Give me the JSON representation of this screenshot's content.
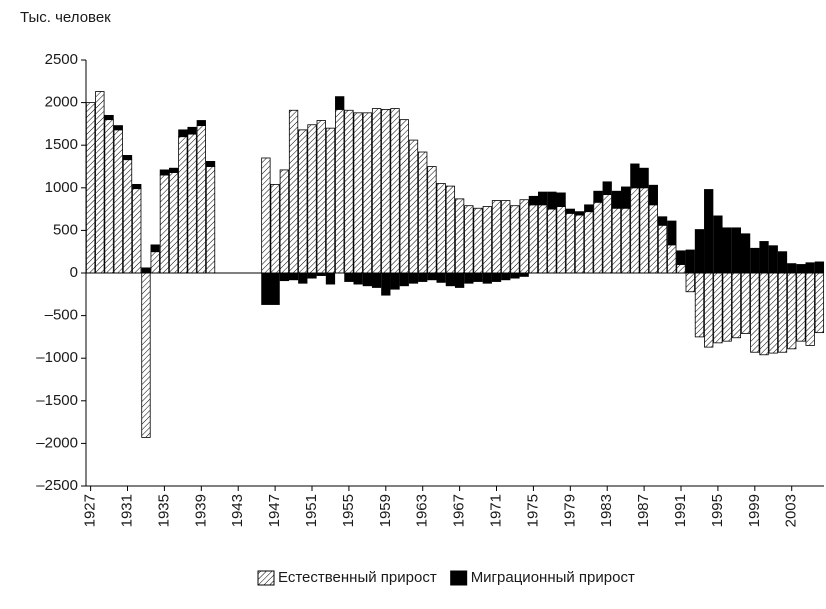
{
  "chart_data": {
    "type": "stacked-bar",
    "ylabel": "Тыс. человек",
    "x": [
      1927,
      1928,
      1929,
      1930,
      1931,
      1932,
      1933,
      1934,
      1935,
      1936,
      1937,
      1938,
      1939,
      1940,
      1941,
      1942,
      1943,
      1944,
      1945,
      1946,
      1947,
      1948,
      1949,
      1950,
      1951,
      1952,
      1953,
      1954,
      1955,
      1956,
      1957,
      1958,
      1959,
      1960,
      1961,
      1962,
      1963,
      1964,
      1965,
      1966,
      1967,
      1968,
      1969,
      1970,
      1971,
      1972,
      1973,
      1974,
      1975,
      1976,
      1977,
      1978,
      1979,
      1980,
      1981,
      1982,
      1983,
      1984,
      1985,
      1986,
      1987,
      1988,
      1989,
      1990,
      1991,
      1992,
      1993,
      1994,
      1995,
      1996,
      1997,
      1998,
      1999,
      2000,
      2001,
      2002,
      2003,
      2004,
      2005,
      2006
    ],
    "xlim": [
      1926.5,
      2006.5
    ],
    "xticks": [
      1927,
      1931,
      1935,
      1939,
      1943,
      1947,
      1951,
      1955,
      1959,
      1963,
      1967,
      1971,
      1975,
      1979,
      1983,
      1987,
      1991,
      1995,
      1999,
      2003
    ],
    "ylim": [
      -2500,
      2500
    ],
    "yticks": [
      2500,
      2000,
      1500,
      1000,
      500,
      0,
      {
        "value": -500,
        "label": "–500"
      },
      {
        "value": -1000,
        "label": "–1000"
      },
      {
        "value": -1500,
        "label": "–1500"
      },
      {
        "value": -2000,
        "label": "–2000"
      },
      {
        "value": -2500,
        "label": "–2500"
      }
    ],
    "series": [
      {
        "name": "Естественный прирост",
        "color": "#000000",
        "hatch": true,
        "values": [
          2000,
          2130,
          1800,
          1680,
          1330,
          990,
          -1930,
          250,
          1150,
          1180,
          1600,
          1630,
          1730,
          1250,
          null,
          null,
          null,
          null,
          null,
          1350,
          1040,
          1210,
          1910,
          1680,
          1740,
          1790,
          1700,
          1920,
          1910,
          1880,
          1880,
          1930,
          1920,
          1930,
          1800,
          1560,
          1420,
          1250,
          1050,
          1020,
          870,
          790,
          760,
          780,
          850,
          850,
          790,
          860,
          800,
          800,
          750,
          780,
          700,
          680,
          720,
          830,
          920,
          760,
          760,
          1000,
          1000,
          800,
          560,
          330,
          100,
          -220,
          -750,
          -870,
          -820,
          -800,
          -760,
          -710,
          -930,
          -960,
          -940,
          -930,
          -890,
          -800,
          -850,
          -700
        ]
      },
      {
        "name": "Миграционный прирост",
        "color": "#000000",
        "hatch": false,
        "values": [
          0,
          0,
          50,
          50,
          50,
          50,
          60,
          80,
          60,
          50,
          80,
          80,
          60,
          60,
          null,
          null,
          null,
          null,
          null,
          -370,
          -370,
          -90,
          -80,
          -120,
          -60,
          -30,
          -130,
          150,
          -100,
          -130,
          -150,
          -170,
          -260,
          -190,
          -150,
          -120,
          -100,
          -80,
          -110,
          -150,
          -170,
          -120,
          -100,
          -120,
          -100,
          -80,
          -60,
          -40,
          100,
          150,
          200,
          160,
          50,
          40,
          80,
          130,
          150,
          200,
          250,
          280,
          230,
          230,
          100,
          280,
          160,
          270,
          510,
          980,
          670,
          530,
          530,
          460,
          290,
          370,
          320,
          250,
          110,
          100,
          120,
          130
        ]
      }
    ]
  }
}
